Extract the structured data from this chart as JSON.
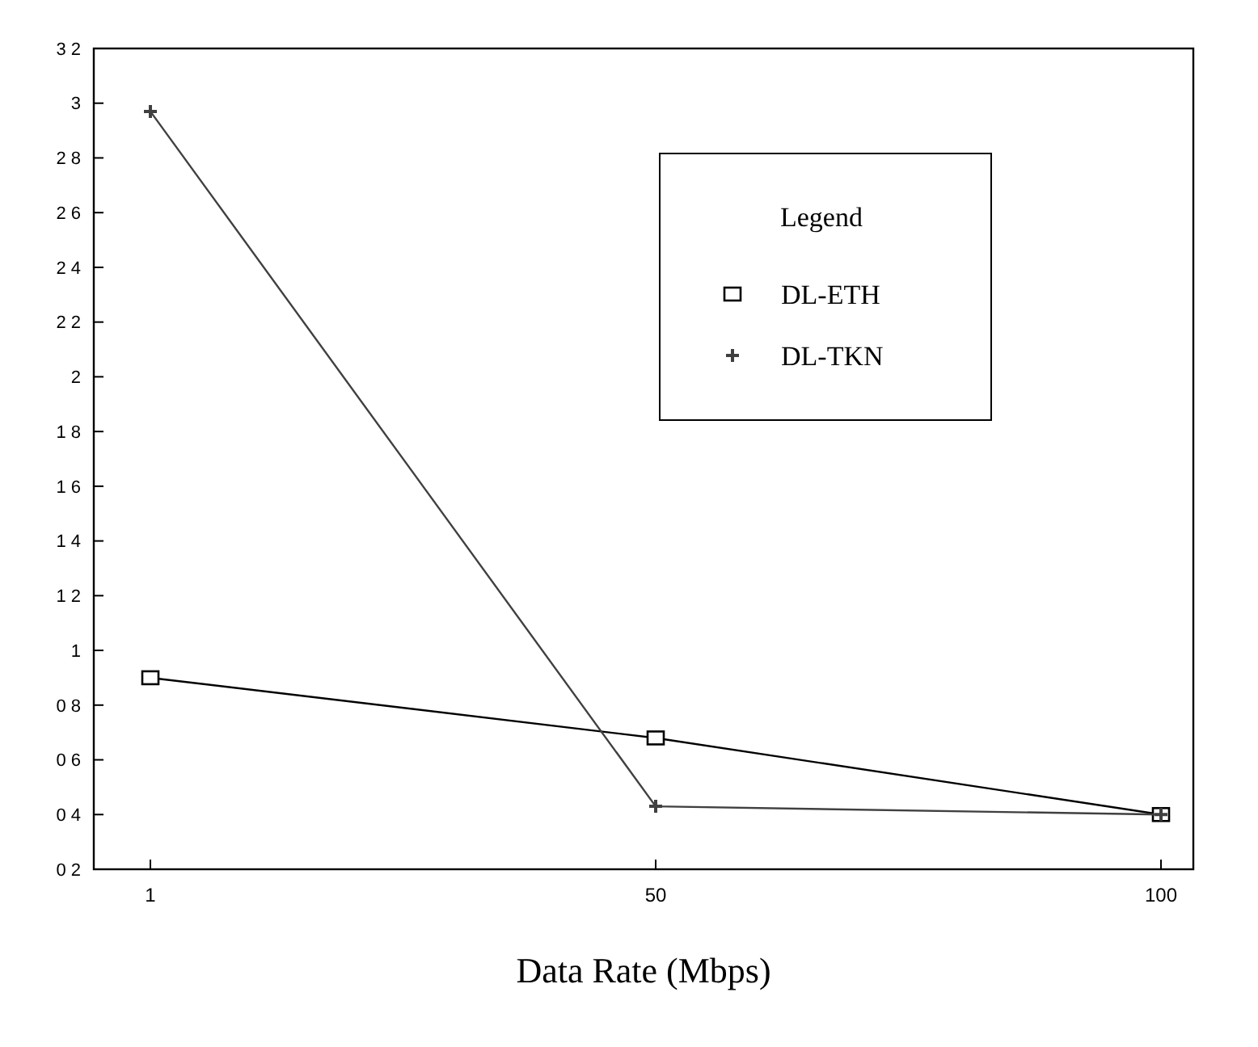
{
  "chart_data": {
    "type": "line",
    "xlabel": "Data Rate (Mbps)",
    "categories": [
      "1",
      "50",
      "100"
    ],
    "series": [
      {
        "name": "DL-ETH",
        "color": "#000000",
        "marker": "square",
        "values": [
          0.9,
          0.68,
          0.4
        ]
      },
      {
        "name": "DL-TKN",
        "color": "#404040",
        "marker": "cross",
        "values": [
          2.97,
          0.43,
          0.4
        ]
      }
    ],
    "ylim": [
      0.2,
      3.2
    ],
    "yticks": [
      {
        "value": 0.2,
        "label": "0 2"
      },
      {
        "value": 0.4,
        "label": "0 4"
      },
      {
        "value": 0.6,
        "label": "0 6"
      },
      {
        "value": 0.8,
        "label": "0 8"
      },
      1,
      {
        "value": 1.2,
        "label": "1 2"
      },
      {
        "value": 1.4,
        "label": "1 4"
      },
      {
        "value": 1.6,
        "label": "1 6"
      },
      {
        "value": 1.8,
        "label": "1 8"
      },
      2,
      {
        "value": 2.2,
        "label": "2 2"
      },
      {
        "value": 2.4,
        "label": "2 4"
      },
      {
        "value": 2.6,
        "label": "2 6"
      },
      {
        "value": 2.8,
        "label": "2 8"
      },
      3,
      {
        "value": 3.2,
        "label": "3 2"
      }
    ],
    "legend": "top right",
    "legend_title": "Legend",
    "grid": false
  }
}
